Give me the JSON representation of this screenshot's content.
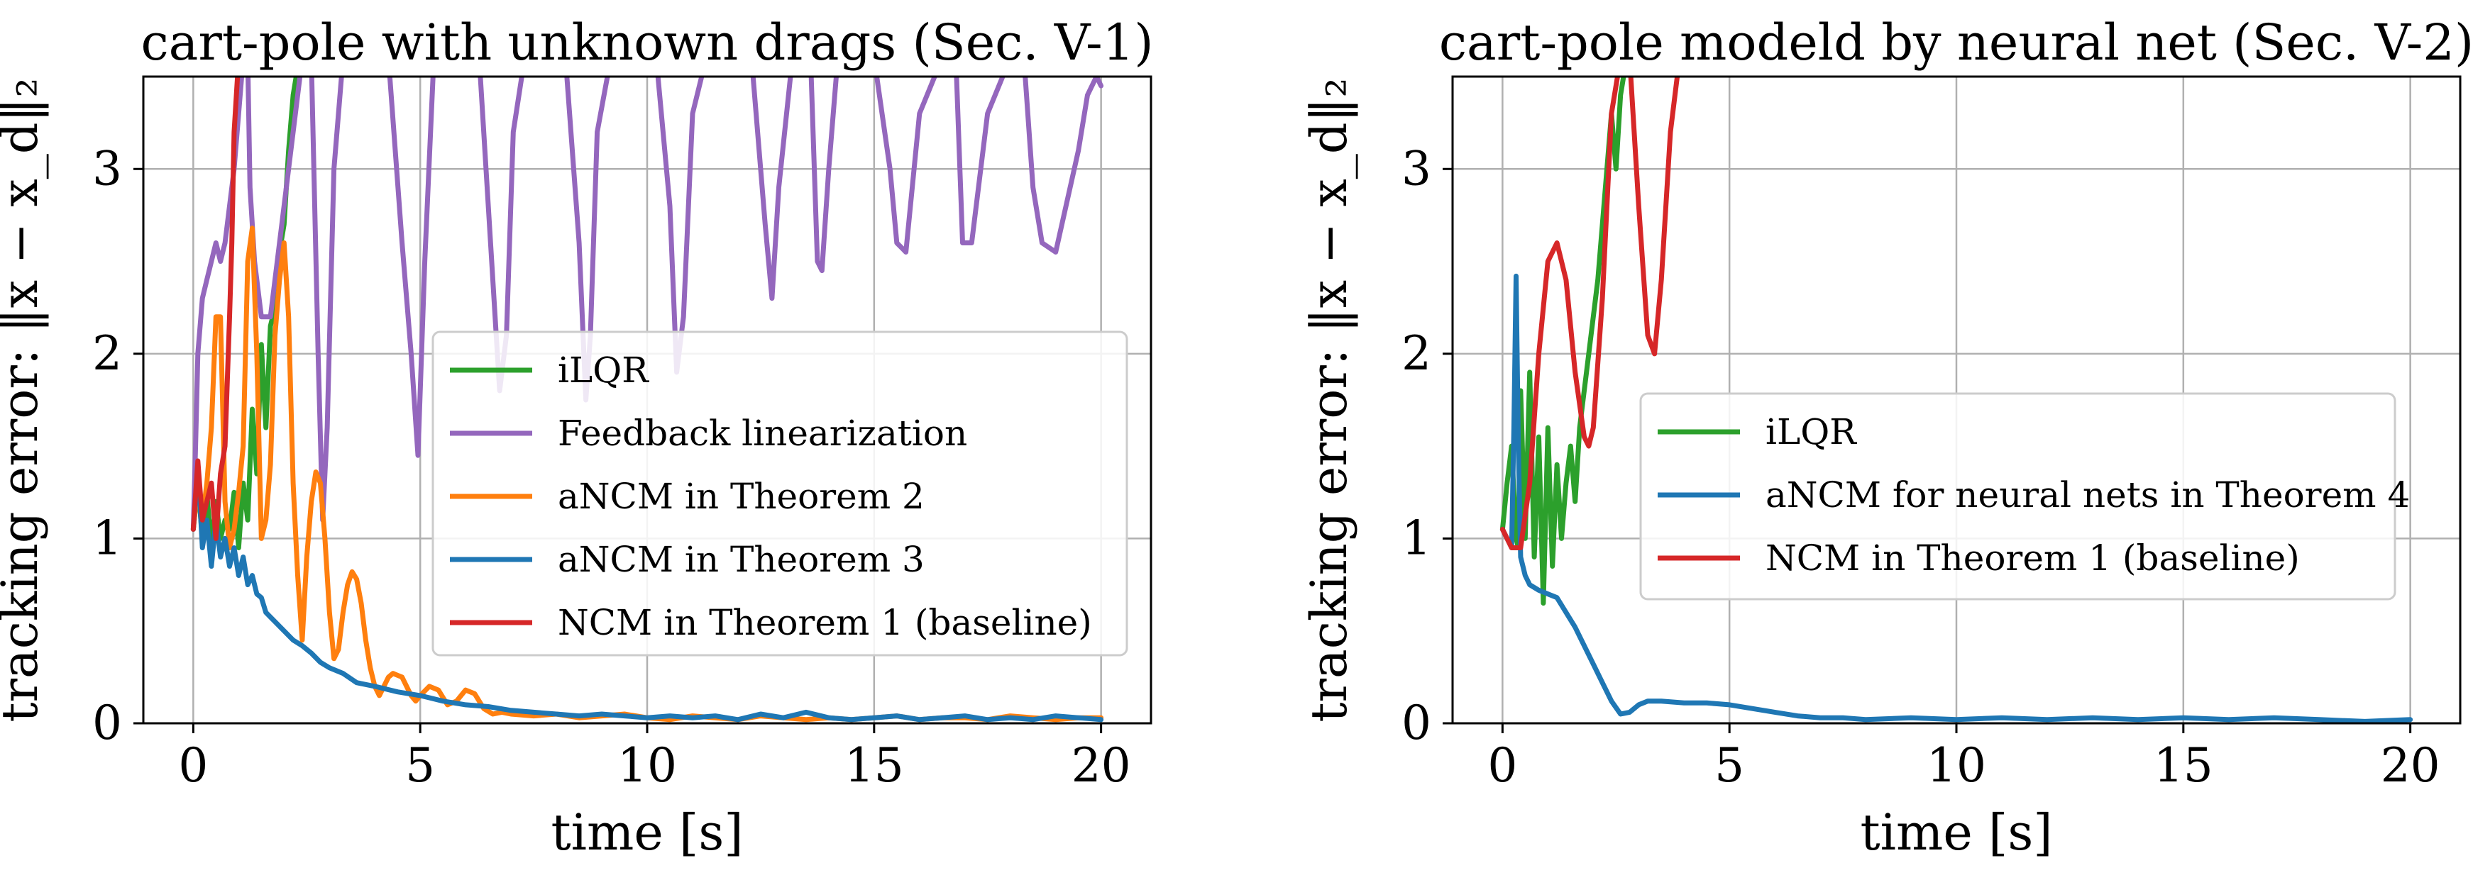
{
  "chart_data": [
    {
      "type": "line",
      "title": "cart-pole with unknown drags (Sec. V-1)",
      "xlabel": "time [s]",
      "ylabel": "tracking error: ‖x − x_d‖₂",
      "xlim": [
        -1.1,
        21.1
      ],
      "ylim": [
        0,
        3.5
      ],
      "xticks": [
        0,
        5,
        10,
        15,
        20
      ],
      "yticks": [
        0,
        1,
        2,
        3
      ],
      "grid": true,
      "legend_position": "center-right",
      "legend": [
        "iLQR",
        "Feedback linearization",
        "aNCM in Theorem 2",
        "aNCM in Theorem 3",
        "NCM in Theorem 1 (baseline)"
      ],
      "series": [
        {
          "name": "iLQR",
          "color": "#2ca02c",
          "x": [
            0,
            0.1,
            0.2,
            0.3,
            0.4,
            0.5,
            0.6,
            0.7,
            0.8,
            0.9,
            1.0,
            1.1,
            1.2,
            1.3,
            1.4,
            1.5,
            1.6,
            1.7,
            1.8,
            1.9,
            2.0,
            2.1,
            2.2,
            2.3
          ],
          "y": [
            1.05,
            1.3,
            1.0,
            1.25,
            0.95,
            1.2,
            1.0,
            1.1,
            1.05,
            1.25,
            0.95,
            1.3,
            1.1,
            1.7,
            1.35,
            2.05,
            1.6,
            2.15,
            2.25,
            2.55,
            2.7,
            3.1,
            3.4,
            3.55
          ]
        },
        {
          "name": "Feedback linearization",
          "color": "#9467bd",
          "x": [
            0,
            0.05,
            0.1,
            0.2,
            0.3,
            0.4,
            0.5,
            0.6,
            0.7,
            0.8,
            0.9,
            1.0,
            1.1,
            1.2,
            1.25,
            1.35,
            1.5,
            1.7,
            2.0,
            2.4,
            2.6,
            2.75,
            2.85,
            2.95,
            3.1,
            3.3,
            3.6,
            4.3,
            4.6,
            4.8,
            4.95,
            5.1,
            5.3,
            6.3,
            6.55,
            6.75,
            6.9,
            7.05,
            7.3,
            8.2,
            8.5,
            8.65,
            8.75,
            8.9,
            9.2,
            10.2,
            10.5,
            10.65,
            10.8,
            11.0,
            11.3,
            11.8,
            12.3,
            12.6,
            12.75,
            12.9,
            13.2,
            13.6,
            13.75,
            13.85,
            14.0,
            14.2,
            14.5,
            15.0,
            15.35,
            15.5,
            15.7,
            16.0,
            16.5,
            16.8,
            16.95,
            17.15,
            17.5,
            18.0,
            18.3,
            18.5,
            18.7,
            19.0,
            19.5,
            19.7,
            19.9,
            20.0
          ],
          "y": [
            1.05,
            1.5,
            2.0,
            2.3,
            2.4,
            2.5,
            2.6,
            2.5,
            2.6,
            2.8,
            3.0,
            3.3,
            3.6,
            3.6,
            2.9,
            2.5,
            2.2,
            2.2,
            2.8,
            3.6,
            3.6,
            2.0,
            1.1,
            1.6,
            3.0,
            3.6,
            3.6,
            3.6,
            2.6,
            2.0,
            1.45,
            2.5,
            3.6,
            3.6,
            2.6,
            1.8,
            2.1,
            3.2,
            3.6,
            3.6,
            2.6,
            1.75,
            2.1,
            3.2,
            3.6,
            3.6,
            2.8,
            1.9,
            2.2,
            3.3,
            3.6,
            3.6,
            3.6,
            2.7,
            2.3,
            2.9,
            3.6,
            3.6,
            2.5,
            2.45,
            3.0,
            3.6,
            3.6,
            3.6,
            3.0,
            2.6,
            2.55,
            3.3,
            3.6,
            3.6,
            2.6,
            2.6,
            3.3,
            3.6,
            3.6,
            2.9,
            2.6,
            2.55,
            3.1,
            3.4,
            3.5,
            3.45
          ]
        },
        {
          "name": "aNCM in Theorem 2",
          "color": "#ff7f0e",
          "x": [
            0,
            0.1,
            0.2,
            0.3,
            0.4,
            0.5,
            0.6,
            0.7,
            0.8,
            0.9,
            1.0,
            1.1,
            1.2,
            1.3,
            1.4,
            1.5,
            1.6,
            1.7,
            1.8,
            1.9,
            2.0,
            2.1,
            2.2,
            2.3,
            2.4,
            2.5,
            2.6,
            2.7,
            2.8,
            2.9,
            3.0,
            3.1,
            3.2,
            3.3,
            3.4,
            3.5,
            3.6,
            3.7,
            3.8,
            3.9,
            4.0,
            4.1,
            4.2,
            4.3,
            4.4,
            4.5,
            4.6,
            4.7,
            4.8,
            4.9,
            5.0,
            5.2,
            5.4,
            5.6,
            5.8,
            6.0,
            6.2,
            6.4,
            6.6,
            6.8,
            7.0,
            7.5,
            8.0,
            8.5,
            9.0,
            9.5,
            10.0,
            10.5,
            11.0,
            11.5,
            12.0,
            12.5,
            13.0,
            13.5,
            14.0,
            14.5,
            15.0,
            15.5,
            16.0,
            16.5,
            17.0,
            17.5,
            18.0,
            18.5,
            19.0,
            19.5,
            20.0
          ],
          "y": [
            1.05,
            1.3,
            1.1,
            1.3,
            1.6,
            2.2,
            2.2,
            1.2,
            0.95,
            1.05,
            1.25,
            1.5,
            2.5,
            2.68,
            2.0,
            1.0,
            1.1,
            1.4,
            2.1,
            2.4,
            2.6,
            2.2,
            1.3,
            0.8,
            0.45,
            0.9,
            1.2,
            1.36,
            1.3,
            1.0,
            0.6,
            0.35,
            0.4,
            0.6,
            0.75,
            0.82,
            0.78,
            0.65,
            0.45,
            0.3,
            0.2,
            0.15,
            0.2,
            0.25,
            0.27,
            0.26,
            0.25,
            0.2,
            0.15,
            0.12,
            0.15,
            0.2,
            0.18,
            0.1,
            0.12,
            0.18,
            0.16,
            0.08,
            0.05,
            0.06,
            0.05,
            0.04,
            0.05,
            0.03,
            0.04,
            0.05,
            0.03,
            0.02,
            0.04,
            0.03,
            0.02,
            0.04,
            0.03,
            0.02,
            0.03,
            0.02,
            0.03,
            0.04,
            0.02,
            0.03,
            0.03,
            0.02,
            0.04,
            0.03,
            0.02,
            0.03,
            0.03
          ]
        },
        {
          "name": "aNCM in Theorem 3",
          "color": "#1f77b4",
          "x": [
            0,
            0.1,
            0.2,
            0.3,
            0.4,
            0.5,
            0.6,
            0.7,
            0.8,
            0.9,
            1.0,
            1.1,
            1.2,
            1.3,
            1.4,
            1.5,
            1.6,
            1.8,
            2.0,
            2.2,
            2.4,
            2.6,
            2.8,
            3.0,
            3.3,
            3.6,
            4.0,
            4.5,
            5.0,
            5.5,
            6.0,
            6.5,
            7.0,
            7.5,
            8.0,
            8.5,
            9.0,
            9.5,
            10.0,
            10.5,
            11.0,
            11.5,
            12.0,
            12.5,
            13.0,
            13.5,
            14.0,
            14.5,
            15.0,
            15.5,
            16.0,
            16.5,
            17.0,
            17.5,
            18.0,
            18.5,
            19.0,
            19.5,
            20.0
          ],
          "y": [
            1.05,
            1.4,
            0.95,
            1.1,
            0.85,
            1.1,
            0.9,
            1.0,
            0.85,
            0.95,
            0.8,
            0.9,
            0.75,
            0.8,
            0.7,
            0.68,
            0.6,
            0.55,
            0.5,
            0.45,
            0.42,
            0.38,
            0.33,
            0.3,
            0.27,
            0.22,
            0.2,
            0.17,
            0.15,
            0.12,
            0.1,
            0.09,
            0.07,
            0.06,
            0.05,
            0.04,
            0.05,
            0.04,
            0.03,
            0.04,
            0.03,
            0.04,
            0.02,
            0.05,
            0.03,
            0.06,
            0.03,
            0.02,
            0.03,
            0.04,
            0.02,
            0.03,
            0.04,
            0.02,
            0.03,
            0.02,
            0.04,
            0.03,
            0.02
          ]
        },
        {
          "name": "NCM in Theorem 1 (baseline)",
          "color": "#d62728",
          "x": [
            0,
            0.1,
            0.2,
            0.3,
            0.4,
            0.5,
            0.6,
            0.7,
            0.8,
            0.85,
            0.9,
            1.0
          ],
          "y": [
            1.05,
            1.42,
            1.1,
            1.2,
            1.3,
            1.0,
            1.35,
            1.5,
            2.2,
            2.6,
            3.2,
            3.6
          ]
        }
      ]
    },
    {
      "type": "line",
      "title": "cart-pole modeld by neural net (Sec. V-2)",
      "xlabel": "time [s]",
      "ylabel": "tracking error: ‖x − x_d‖₂",
      "xlim": [
        -1.1,
        21.1
      ],
      "ylim": [
        0,
        3.5
      ],
      "xticks": [
        0,
        5,
        10,
        15,
        20
      ],
      "yticks": [
        0,
        1,
        2,
        3
      ],
      "grid": true,
      "legend_position": "center-right",
      "legend": [
        "iLQR",
        "aNCM for neural nets in Theorem 4",
        "NCM in Theorem 1 (baseline)"
      ],
      "series": [
        {
          "name": "iLQR",
          "color": "#2ca02c",
          "x": [
            0,
            0.1,
            0.2,
            0.3,
            0.35,
            0.4,
            0.5,
            0.6,
            0.7,
            0.8,
            0.9,
            1.0,
            1.1,
            1.2,
            1.3,
            1.4,
            1.5,
            1.6,
            1.7,
            1.8,
            1.9,
            2.0,
            2.1,
            2.2,
            2.3,
            2.4,
            2.5,
            2.6,
            2.7,
            2.8
          ],
          "y": [
            1.05,
            1.3,
            1.5,
            1.0,
            0.95,
            1.8,
            1.0,
            1.9,
            0.9,
            1.55,
            0.65,
            1.6,
            0.85,
            1.4,
            1.0,
            1.3,
            1.5,
            1.2,
            1.6,
            1.8,
            2.0,
            2.2,
            2.4,
            2.7,
            3.0,
            3.3,
            3.0,
            3.4,
            3.55,
            3.6
          ]
        },
        {
          "name": "aNCM for neural nets in Theorem 4",
          "color": "#1f77b4",
          "x": [
            0,
            0.1,
            0.2,
            0.25,
            0.3,
            0.35,
            0.4,
            0.5,
            0.6,
            0.8,
            1.0,
            1.2,
            1.4,
            1.6,
            1.8,
            2.0,
            2.2,
            2.4,
            2.6,
            2.8,
            3.0,
            3.2,
            3.5,
            4.0,
            4.5,
            5.0,
            5.5,
            6.0,
            6.5,
            7.0,
            7.5,
            8.0,
            9.0,
            10.0,
            11.0,
            12.0,
            13.0,
            14.0,
            15.0,
            16.0,
            17.0,
            18.0,
            19.0,
            20.0
          ],
          "y": [
            1.05,
            1.0,
            0.95,
            1.6,
            2.42,
            1.5,
            0.9,
            0.8,
            0.75,
            0.72,
            0.7,
            0.68,
            0.6,
            0.52,
            0.42,
            0.32,
            0.22,
            0.12,
            0.05,
            0.06,
            0.1,
            0.12,
            0.12,
            0.11,
            0.11,
            0.1,
            0.08,
            0.06,
            0.04,
            0.03,
            0.03,
            0.02,
            0.03,
            0.02,
            0.03,
            0.02,
            0.03,
            0.02,
            0.03,
            0.02,
            0.03,
            0.02,
            0.01,
            0.02
          ]
        },
        {
          "name": "NCM in Theorem 1 (baseline)",
          "color": "#d62728",
          "x": [
            0,
            0.2,
            0.4,
            0.6,
            0.8,
            1.0,
            1.2,
            1.4,
            1.6,
            1.8,
            1.9,
            2.0,
            2.2,
            2.4,
            2.6,
            2.8,
            3.0,
            3.2,
            3.35,
            3.5,
            3.7,
            3.9
          ],
          "y": [
            1.05,
            0.95,
            0.95,
            1.3,
            2.0,
            2.5,
            2.6,
            2.4,
            1.9,
            1.55,
            1.5,
            1.6,
            2.3,
            3.3,
            3.6,
            3.6,
            2.8,
            2.1,
            2.0,
            2.4,
            3.2,
            3.6
          ]
        }
      ]
    }
  ]
}
